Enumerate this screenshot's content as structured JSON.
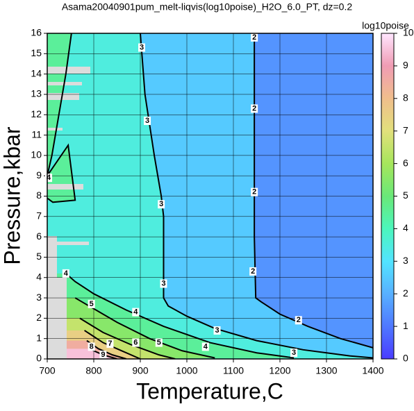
{
  "chart_data": {
    "type": "contour",
    "title": "Asama20040901pum_melt-liqvis(log10poise)_H2O_6.0_PT, dz=0.2",
    "x_label": "Temperature,C",
    "y_label": "Pressure,kbar",
    "colorbar_label": "log10poise",
    "xlim": [
      700,
      1400
    ],
    "xticks": [
      700,
      800,
      900,
      1000,
      1100,
      1200,
      1300,
      1400
    ],
    "ylim": [
      0,
      16
    ],
    "yticks": [
      0,
      1,
      2,
      3,
      4,
      5,
      6,
      7,
      8,
      9,
      10,
      11,
      12,
      13,
      14,
      15,
      16
    ],
    "clim": [
      0,
      10
    ],
    "cticks": [
      0,
      1,
      2,
      3,
      4,
      5,
      6,
      7,
      8,
      9,
      10
    ],
    "grid": true,
    "colormap": [
      {
        "value": 0,
        "color": "#4a3cff"
      },
      {
        "value": 1,
        "color": "#4f78ff"
      },
      {
        "value": 2,
        "color": "#58b0ff"
      },
      {
        "value": 3,
        "color": "#52e4ff"
      },
      {
        "value": 4,
        "color": "#4cf6bc"
      },
      {
        "value": 5,
        "color": "#6ae878"
      },
      {
        "value": 6,
        "color": "#a6e65c"
      },
      {
        "value": 7,
        "color": "#e2e07c"
      },
      {
        "value": 8,
        "color": "#f0be8c"
      },
      {
        "value": 9,
        "color": "#f09cb4"
      },
      {
        "value": 10,
        "color": "#ffe6ff"
      }
    ],
    "contours": [
      {
        "level": 2,
        "T": [
          1145,
          1145,
          1145,
          1148,
          1160,
          1200,
          1260,
          1330,
          1400
        ],
        "P": [
          16,
          12,
          6,
          3,
          2.8,
          2.2,
          1.6,
          1.0,
          0.55
        ],
        "label_T": [
          1145,
          1145,
          1145,
          1142,
          1240
        ],
        "label_P": [
          15.8,
          12.3,
          8.2,
          4.3,
          1.9
        ]
      },
      {
        "level": 3,
        "T": [
          900,
          910,
          930,
          945,
          950,
          950,
          960,
          1000,
          1060,
          1150,
          1250,
          1350,
          1400
        ],
        "P": [
          16,
          13,
          10,
          8,
          7,
          3,
          2.6,
          2.1,
          1.5,
          0.9,
          0.45,
          0.15,
          0.05
        ],
        "label_T": [
          903,
          915,
          945,
          950,
          1065,
          1230
        ],
        "label_P": [
          15.3,
          11.7,
          7.6,
          3.7,
          1.4,
          0.3
        ]
      },
      {
        "level": 4,
        "T": [
          752,
          740,
          725,
          710,
          700,
          null,
          700,
          745,
          760,
          712,
          700,
          null,
          740,
          760,
          800,
          870,
          950,
          1050,
          1150,
          1230
        ],
        "P": [
          16,
          14,
          12,
          10,
          9,
          null,
          9,
          10.5,
          7.8,
          7.7,
          7.9,
          null,
          4.2,
          3.8,
          3.2,
          2.4,
          1.6,
          0.8,
          0.3,
          0.05
        ],
        "label_T": [
          703,
          740,
          890,
          1040
        ],
        "label_P": [
          8.9,
          4.2,
          2.3,
          0.6
        ]
      },
      {
        "level": 5,
        "T": [
          760,
          790,
          850,
          920,
          990,
          1060
        ],
        "P": [
          3,
          2.6,
          1.8,
          1.0,
          0.4,
          0.05
        ],
        "label_T": [
          795,
          940
        ],
        "label_P": [
          2.7,
          0.8
        ]
      },
      {
        "level": 6,
        "T": [
          770,
          820,
          880,
          940,
          975
        ],
        "P": [
          2.0,
          1.3,
          0.7,
          0.2,
          0
        ],
        "label_T": [
          890
        ],
        "label_P": [
          0.8
        ]
      },
      {
        "level": 7,
        "T": [
          780,
          820,
          860,
          900
        ],
        "P": [
          1.4,
          0.8,
          0.4,
          0
        ],
        "label_T": [
          835
        ],
        "label_P": [
          0.75
        ]
      },
      {
        "level": 8,
        "T": [
          785,
          810,
          840,
          870
        ],
        "P": [
          0.9,
          0.5,
          0.2,
          0
        ],
        "label_T": [
          795
        ],
        "label_P": [
          0.6
        ]
      },
      {
        "level": 9,
        "T": [
          790,
          820,
          850
        ],
        "P": [
          0.5,
          0.2,
          0
        ],
        "label_T": [
          820
        ],
        "label_P": [
          0.2
        ]
      }
    ]
  }
}
